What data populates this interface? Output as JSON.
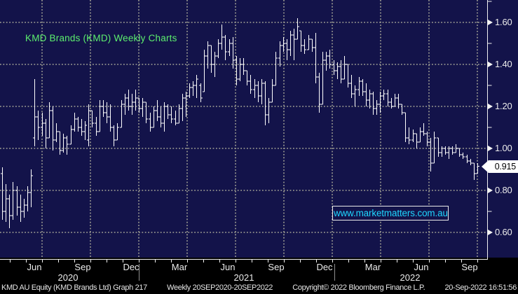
{
  "window_title": "KMD Brands (KMD) Weekly Charts",
  "watermark": {
    "text": "www.marketmatters.com.au"
  },
  "footer": {
    "parts": [
      "KMD AU Equity (KMD Brands Ltd) Graph 217",
      "Weekly 20SEP2020-20SEP2022",
      "Copyright© 2022 Bloomberg Finance L.P.",
      "20-Sep-2022 16:51:56"
    ]
  },
  "colors": {
    "background": "#13134a",
    "grid": "#a3a396",
    "bars": "#ffffff",
    "axis_line": "#f0f0f0",
    "title_green": "#5cef6e",
    "link_cyan": "#1fd7ff",
    "tag_bg": "#ffffff",
    "tag_text": "#000000",
    "footer_bg": "#000000",
    "year_separator": "#8f8f8f"
  },
  "chart_data": {
    "type": "ohlc-bar",
    "title": "KMD Brands (KMD) Weekly Charts",
    "period": "Weekly",
    "last_price": "0.915",
    "y_axis": {
      "side": "right",
      "major_labels": [
        "1.60",
        "1.40",
        "1.20",
        "1.00",
        "0.80",
        "0.60"
      ],
      "major_values": [
        1.6,
        1.4,
        1.2,
        1.0,
        0.8,
        0.6
      ],
      "minor_values": [
        1.7,
        1.5,
        1.3,
        1.1,
        0.9,
        0.7
      ],
      "ylim": [
        0.48,
        1.71
      ],
      "grid": true
    },
    "x_axis": {
      "month_labels": [
        "Jun",
        "Sep",
        "Dec",
        "Mar",
        "Jun",
        "Sep",
        "Dec",
        "Mar",
        "Jun",
        "Sep"
      ],
      "years": [
        {
          "label": "2020",
          "x": 97
        },
        {
          "label": "2021",
          "x": 348
        },
        {
          "label": "2022",
          "x": 585
        }
      ],
      "year_separators_x": [
        198,
        477
      ],
      "first_label_x": 49,
      "label_step": 69,
      "grid": true
    },
    "bars_format": [
      "open",
      "high",
      "low",
      "close"
    ],
    "bars": [
      [
        0.88,
        0.91,
        0.66,
        0.7
      ],
      [
        0.7,
        0.83,
        0.65,
        0.76
      ],
      [
        0.76,
        0.78,
        0.62,
        0.68
      ],
      [
        0.68,
        0.84,
        0.66,
        0.8
      ],
      [
        0.8,
        0.82,
        0.68,
        0.72
      ],
      [
        0.72,
        0.78,
        0.65,
        0.7
      ],
      [
        0.7,
        0.76,
        0.67,
        0.73
      ],
      [
        0.73,
        0.82,
        0.7,
        0.79
      ],
      [
        0.79,
        0.9,
        0.72,
        0.87
      ],
      [
        1.05,
        1.33,
        1.01,
        1.15
      ],
      [
        1.15,
        1.18,
        1.04,
        1.1
      ],
      [
        1.1,
        1.17,
        1.06,
        1.12
      ],
      [
        1.12,
        1.14,
        1.0,
        1.05
      ],
      [
        1.05,
        1.22,
        1.05,
        1.18
      ],
      [
        1.18,
        1.2,
        0.99,
        1.04
      ],
      [
        1.04,
        1.12,
        1.03,
        1.08
      ],
      [
        1.08,
        1.08,
        0.97,
        0.99
      ],
      [
        0.99,
        1.07,
        0.98,
        1.05
      ],
      [
        1.05,
        1.06,
        0.97,
        1.02
      ],
      [
        1.02,
        1.11,
        1.02,
        1.09
      ],
      [
        1.09,
        1.17,
        1.08,
        1.14
      ],
      [
        1.14,
        1.15,
        1.08,
        1.1
      ],
      [
        1.1,
        1.14,
        1.06,
        1.08
      ],
      [
        1.08,
        1.13,
        1.04,
        1.11
      ],
      [
        1.04,
        1.21,
        1.01,
        1.18
      ],
      [
        1.18,
        1.18,
        1.1,
        1.12
      ],
      [
        1.12,
        1.15,
        1.06,
        1.08
      ],
      [
        1.08,
        1.23,
        1.08,
        1.2
      ],
      [
        1.2,
        1.23,
        1.15,
        1.17
      ],
      [
        1.17,
        1.22,
        1.12,
        1.15
      ],
      [
        1.15,
        1.21,
        1.08,
        1.1
      ],
      [
        1.1,
        1.11,
        1.01,
        1.04
      ],
      [
        1.04,
        1.12,
        1.04,
        1.1
      ],
      [
        1.1,
        1.23,
        1.1,
        1.21
      ],
      [
        1.21,
        1.26,
        1.16,
        1.24
      ],
      [
        1.24,
        1.28,
        1.18,
        1.2
      ],
      [
        1.2,
        1.26,
        1.16,
        1.22
      ],
      [
        1.22,
        1.28,
        1.18,
        1.24
      ],
      [
        1.24,
        1.24,
        1.17,
        1.19
      ],
      [
        1.19,
        1.24,
        1.15,
        1.22
      ],
      [
        1.22,
        1.22,
        1.12,
        1.14
      ],
      [
        1.14,
        1.17,
        1.08,
        1.1
      ],
      [
        1.1,
        1.2,
        1.1,
        1.18
      ],
      [
        1.18,
        1.23,
        1.13,
        1.15
      ],
      [
        1.15,
        1.2,
        1.1,
        1.12
      ],
      [
        1.12,
        1.22,
        1.08,
        1.2
      ],
      [
        1.2,
        1.21,
        1.14,
        1.16
      ],
      [
        1.16,
        1.2,
        1.12,
        1.14
      ],
      [
        1.14,
        1.18,
        1.11,
        1.12
      ],
      [
        1.12,
        1.21,
        1.12,
        1.19
      ],
      [
        1.19,
        1.26,
        1.13,
        1.24
      ],
      [
        1.24,
        1.27,
        1.15,
        1.25
      ],
      [
        1.25,
        1.31,
        1.24,
        1.29
      ],
      [
        1.29,
        1.32,
        1.25,
        1.3
      ],
      [
        1.3,
        1.35,
        1.24,
        1.33
      ],
      [
        1.3,
        1.31,
        1.22,
        1.24
      ],
      [
        1.27,
        1.47,
        1.27,
        1.44
      ],
      [
        1.44,
        1.51,
        1.38,
        1.49
      ],
      [
        1.49,
        1.49,
        1.36,
        1.4
      ],
      [
        1.4,
        1.46,
        1.34,
        1.44
      ],
      [
        1.44,
        1.52,
        1.43,
        1.5
      ],
      [
        1.5,
        1.59,
        1.47,
        1.53
      ],
      [
        1.53,
        1.54,
        1.42,
        1.46
      ],
      [
        1.46,
        1.52,
        1.44,
        1.5
      ],
      [
        1.5,
        1.53,
        1.38,
        1.42
      ],
      [
        1.42,
        1.44,
        1.3,
        1.33
      ],
      [
        1.33,
        1.43,
        1.32,
        1.4
      ],
      [
        1.4,
        1.43,
        1.35,
        1.37
      ],
      [
        1.37,
        1.37,
        1.3,
        1.32
      ],
      [
        1.32,
        1.35,
        1.26,
        1.28
      ],
      [
        1.28,
        1.33,
        1.24,
        1.3
      ],
      [
        1.3,
        1.32,
        1.22,
        1.25
      ],
      [
        1.25,
        1.33,
        1.21,
        1.31
      ],
      [
        1.31,
        1.32,
        1.11,
        1.16
      ],
      [
        1.16,
        1.24,
        1.12,
        1.22
      ],
      [
        1.22,
        1.33,
        1.22,
        1.3
      ],
      [
        1.3,
        1.46,
        1.3,
        1.43
      ],
      [
        1.43,
        1.51,
        1.39,
        1.49
      ],
      [
        1.49,
        1.53,
        1.46,
        1.5
      ],
      [
        1.5,
        1.52,
        1.42,
        1.47
      ],
      [
        1.47,
        1.56,
        1.44,
        1.54
      ],
      [
        1.54,
        1.57,
        1.42,
        1.52
      ],
      [
        1.52,
        1.62,
        1.52,
        1.58
      ],
      [
        1.56,
        1.56,
        1.46,
        1.49
      ],
      [
        1.49,
        1.52,
        1.45,
        1.47
      ],
      [
        1.47,
        1.54,
        1.47,
        1.52
      ],
      [
        1.52,
        1.52,
        1.46,
        1.48
      ],
      [
        1.48,
        1.55,
        1.31,
        1.34
      ],
      [
        1.34,
        1.36,
        1.17,
        1.21
      ],
      [
        1.21,
        1.46,
        1.21,
        1.42
      ],
      [
        1.42,
        1.46,
        1.37,
        1.44
      ],
      [
        1.44,
        1.47,
        1.38,
        1.4
      ],
      [
        1.4,
        1.42,
        1.35,
        1.37
      ],
      [
        1.37,
        1.41,
        1.33,
        1.39
      ],
      [
        1.39,
        1.42,
        1.31,
        1.33
      ],
      [
        1.33,
        1.44,
        1.33,
        1.4
      ],
      [
        1.4,
        1.4,
        1.29,
        1.31
      ],
      [
        1.31,
        1.35,
        1.24,
        1.26
      ],
      [
        1.26,
        1.3,
        1.2,
        1.28
      ],
      [
        1.28,
        1.34,
        1.25,
        1.32
      ],
      [
        1.32,
        1.33,
        1.25,
        1.27
      ],
      [
        1.27,
        1.31,
        1.2,
        1.23
      ],
      [
        1.23,
        1.28,
        1.19,
        1.26
      ],
      [
        1.26,
        1.27,
        1.16,
        1.19
      ],
      [
        1.19,
        1.23,
        1.16,
        1.21
      ],
      [
        1.21,
        1.27,
        1.17,
        1.25
      ],
      [
        1.25,
        1.28,
        1.23,
        1.26
      ],
      [
        1.26,
        1.28,
        1.2,
        1.22
      ],
      [
        1.22,
        1.24,
        1.19,
        1.2
      ],
      [
        1.2,
        1.26,
        1.2,
        1.24
      ],
      [
        1.24,
        1.26,
        1.19,
        1.21
      ],
      [
        1.21,
        1.21,
        1.16,
        1.17
      ],
      [
        1.17,
        1.17,
        1.03,
        1.05
      ],
      [
        1.05,
        1.1,
        1.02,
        1.04
      ],
      [
        1.04,
        1.09,
        1.03,
        1.07
      ],
      [
        1.07,
        1.07,
        1.0,
        1.03
      ],
      [
        1.03,
        1.1,
        1.03,
        1.08
      ],
      [
        1.08,
        1.12,
        1.06,
        1.07
      ],
      [
        1.07,
        1.08,
        1.01,
        1.03
      ],
      [
        1.03,
        1.05,
        0.89,
        0.93
      ],
      [
        0.93,
        1.08,
        0.93,
        1.05
      ],
      [
        1.05,
        1.05,
        0.96,
        0.98
      ],
      [
        0.98,
        1.01,
        0.96,
        1.0
      ],
      [
        1.0,
        1.01,
        0.97,
        0.98
      ],
      [
        0.98,
        1.01,
        0.95,
        1.0
      ],
      [
        1.0,
        1.01,
        0.97,
        0.98
      ],
      [
        0.98,
        1.02,
        0.98,
        1.0
      ],
      [
        1.0,
        1.0,
        0.96,
        0.97
      ],
      [
        0.97,
        0.98,
        0.95,
        0.96
      ],
      [
        0.96,
        0.97,
        0.93,
        0.94
      ],
      [
        0.94,
        0.95,
        0.92,
        0.93
      ],
      [
        0.93,
        0.93,
        0.85,
        0.88
      ],
      [
        0.88,
        0.93,
        0.88,
        0.915
      ]
    ]
  }
}
